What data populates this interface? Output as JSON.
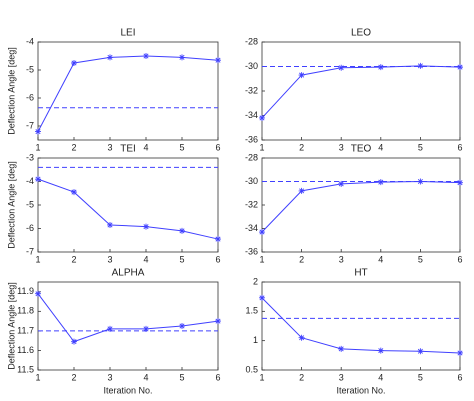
{
  "chart_data": [
    {
      "type": "line",
      "title": "LEI",
      "ylabel": "Deflection Angle [deg]",
      "x": [
        1,
        2,
        3,
        4,
        5,
        6
      ],
      "xlim": [
        1,
        6
      ],
      "xticks": [
        1,
        2,
        3,
        4,
        5,
        6
      ],
      "ylim": [
        -7.5,
        -4
      ],
      "yticks": [
        -4,
        -5,
        -6,
        -7
      ],
      "color": "#4040ff",
      "values": [
        -7.2,
        -4.75,
        -4.55,
        -4.5,
        -4.55,
        -4.65
      ],
      "reference_line": -6.35
    },
    {
      "type": "line",
      "title": "LEO",
      "x": [
        1,
        2,
        3,
        4,
        5,
        6
      ],
      "xlim": [
        1,
        6
      ],
      "xticks": [
        1,
        2,
        3,
        4,
        5,
        6
      ],
      "ylim": [
        -36,
        -28
      ],
      "yticks": [
        -28,
        -30,
        -32,
        -34,
        -36
      ],
      "color": "#4040ff",
      "values": [
        -34.2,
        -30.7,
        -30.1,
        -30.05,
        -29.95,
        -30.05
      ],
      "reference_line": -30
    },
    {
      "type": "line",
      "title": "TEI",
      "ylabel": "Deflection Angle [deg]",
      "x": [
        1,
        2,
        3,
        4,
        5,
        6
      ],
      "xlim": [
        1,
        6
      ],
      "xticks": [
        1,
        2,
        3,
        4,
        5,
        6
      ],
      "ylim": [
        -7,
        -3
      ],
      "yticks": [
        -3,
        -4,
        -5,
        -6,
        -7
      ],
      "color": "#4040ff",
      "values": [
        -3.9,
        -4.45,
        -5.85,
        -5.92,
        -6.1,
        -6.45
      ],
      "reference_line": -3.4
    },
    {
      "type": "line",
      "title": "TEO",
      "x": [
        1,
        2,
        3,
        4,
        5,
        6
      ],
      "xlim": [
        1,
        6
      ],
      "xticks": [
        1,
        2,
        3,
        4,
        5,
        6
      ],
      "ylim": [
        -36,
        -28
      ],
      "yticks": [
        -28,
        -30,
        -32,
        -34,
        -36
      ],
      "color": "#4040ff",
      "values": [
        -34.3,
        -30.8,
        -30.2,
        -30.05,
        -30.0,
        -30.1
      ],
      "reference_line": -30
    },
    {
      "type": "line",
      "title": "ALPHA",
      "ylabel": "Deflection Angle [deg]",
      "xlabel": "Iteration No.",
      "x": [
        1,
        2,
        3,
        4,
        5,
        6
      ],
      "xlim": [
        1,
        6
      ],
      "xticks": [
        1,
        2,
        3,
        4,
        5,
        6
      ],
      "ylim": [
        11.5,
        11.95
      ],
      "yticks": [
        11.5,
        11.6,
        11.7,
        11.8,
        11.9
      ],
      "color": "#4040ff",
      "values": [
        11.89,
        11.645,
        11.71,
        11.71,
        11.725,
        11.75
      ],
      "reference_line": 11.7
    },
    {
      "type": "line",
      "title": "HT",
      "xlabel": "Iteration No.",
      "x": [
        1,
        2,
        3,
        4,
        5,
        6
      ],
      "xlim": [
        1,
        6
      ],
      "xticks": [
        1,
        2,
        3,
        4,
        5,
        6
      ],
      "ylim": [
        0.5,
        2
      ],
      "yticks": [
        0.5,
        1,
        1.5,
        2
      ],
      "color": "#4040ff",
      "values": [
        1.73,
        1.05,
        0.86,
        0.83,
        0.82,
        0.79
      ],
      "reference_line": 1.38
    }
  ]
}
